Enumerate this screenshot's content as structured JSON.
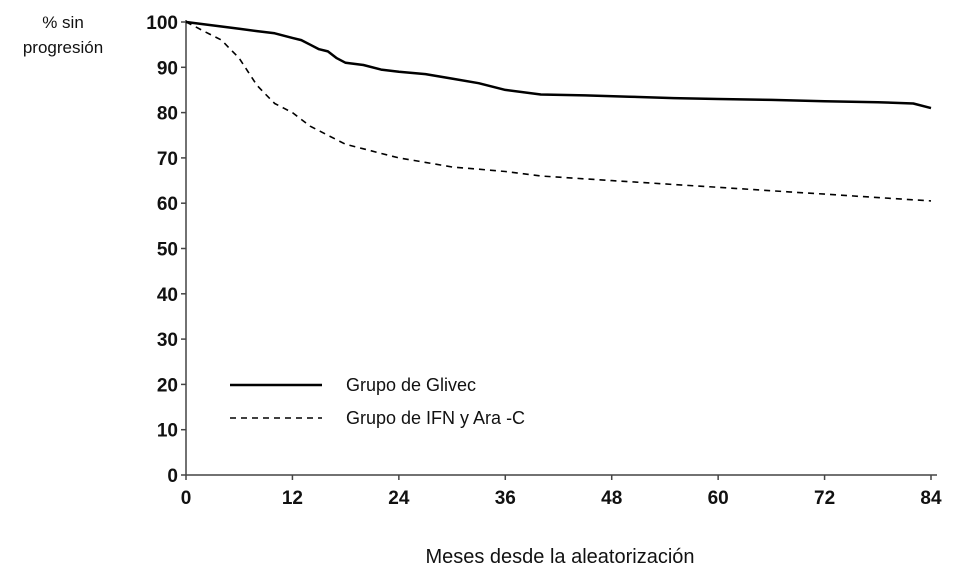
{
  "chart_data": {
    "type": "line",
    "title": "",
    "ylabel_line1": "% sin",
    "ylabel_line2": "progresión",
    "xlabel": "Meses desde la aleatorización",
    "xlim": [
      0,
      84
    ],
    "ylim": [
      0,
      100
    ],
    "x_ticks": [
      0,
      12,
      24,
      36,
      48,
      60,
      72,
      84
    ],
    "y_ticks": [
      0,
      10,
      20,
      30,
      40,
      50,
      60,
      70,
      80,
      90,
      100
    ],
    "grid": false,
    "legend_position": "lower-left",
    "series": [
      {
        "name": "Grupo de Glivec",
        "style": "solid",
        "color": "#000000",
        "x": [
          0,
          2,
          4,
          6,
          8,
          10,
          12,
          13,
          14,
          15,
          16,
          17,
          18,
          20,
          22,
          24,
          27,
          30,
          33,
          36,
          40,
          45,
          50,
          55,
          60,
          66,
          72,
          78,
          82,
          84
        ],
        "y": [
          100,
          99.5,
          99,
          98.5,
          98,
          97.5,
          96.5,
          96,
          95,
          94,
          93.5,
          92,
          91,
          90.5,
          89.5,
          89,
          88.5,
          87.5,
          86.5,
          85,
          84,
          83.8,
          83.5,
          83.2,
          83,
          82.8,
          82.5,
          82.3,
          82,
          81
        ]
      },
      {
        "name": "Grupo de IFN y Ara -C",
        "style": "dashed",
        "color": "#000000",
        "x": [
          0,
          1,
          2,
          3,
          4,
          5,
          6,
          7,
          8,
          9,
          10,
          11,
          12,
          14,
          16,
          18,
          20,
          22,
          24,
          27,
          30,
          33,
          36,
          40,
          44,
          48,
          52,
          56,
          60,
          64,
          68,
          72,
          76,
          80,
          84
        ],
        "y": [
          100,
          99,
          98,
          97,
          96,
          94,
          92,
          89,
          86,
          84,
          82,
          81,
          80,
          77,
          75,
          73,
          72,
          71,
          70,
          69,
          68,
          67.5,
          67,
          66,
          65.5,
          65,
          64.5,
          64,
          63.5,
          63,
          62.5,
          62,
          61.5,
          61,
          60.5
        ]
      }
    ]
  }
}
